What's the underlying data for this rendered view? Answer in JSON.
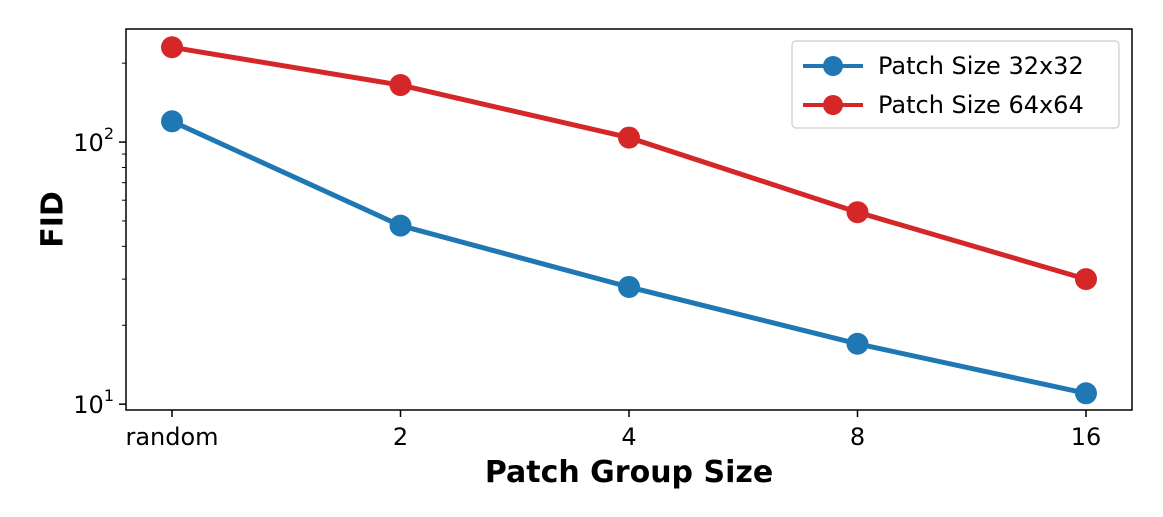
{
  "chart_data": {
    "type": "line",
    "title": "",
    "xlabel": "Patch Group Size",
    "ylabel": "FID",
    "y_scale": "log",
    "ylim": [
      9.5,
      270
    ],
    "x_categories": [
      "random",
      "2",
      "4",
      "8",
      "16"
    ],
    "y_ticks": [
      {
        "value": 10,
        "base": "10",
        "exp": "1"
      },
      {
        "value": 100,
        "base": "10",
        "exp": "2"
      }
    ],
    "series": [
      {
        "name": "Patch Size 32x32",
        "color": "#1f77b4",
        "values": [
          120,
          48,
          28,
          17,
          11
        ]
      },
      {
        "name": "Patch Size 64x64",
        "color": "#d62728",
        "values": [
          230,
          165,
          104,
          54,
          30
        ]
      }
    ],
    "grid": false,
    "legend_position": "top-right"
  }
}
